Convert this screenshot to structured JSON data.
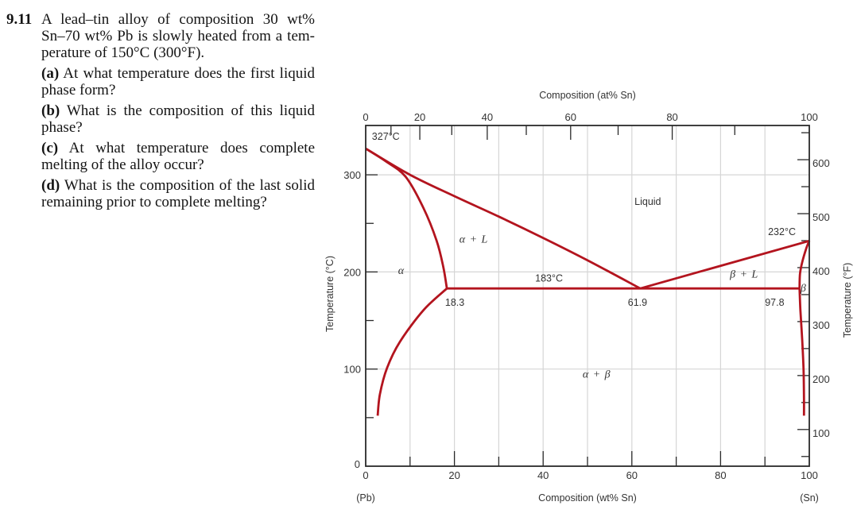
{
  "problem": {
    "number": "9.11",
    "intro_lines": [
      "A lead–tin alloy of composition 30 wt%",
      "Sn–70 wt% Pb is slowly heated from a tem-",
      "perature of 150°C (300°F)."
    ],
    "parts": [
      {
        "label": "(a)",
        "lines": [
          "At what temperature does the first liquid",
          "phase form?"
        ]
      },
      {
        "label": "(b)",
        "lines": [
          "What is the composition of this liquid",
          "phase?"
        ]
      },
      {
        "label": "(c)",
        "lines": [
          "At what temperature does complete",
          "melting of the alloy occur?"
        ]
      },
      {
        "label": "(d)",
        "lines": [
          "What is the composition of the last solid",
          "remaining prior to complete melting?"
        ]
      }
    ]
  },
  "colors": {
    "curve": "#b3141e",
    "grid": "#d6d6d6",
    "frame": "#2a2a2a",
    "label": "#333333"
  },
  "chart_data": {
    "type": "line",
    "title": "",
    "xlabel": "Composition (wt% Sn)",
    "x2label": "Composition (at% Sn)",
    "ylabel": "Temperature (°C)",
    "y2label": "Temperature (°F)",
    "xlim": [
      0,
      100
    ],
    "ylim": [
      0,
      350
    ],
    "x_end_labels": {
      "left": "(Pb)",
      "right": "(Sn)"
    },
    "x_ticks": [
      {
        "label": "0",
        "value": 0
      },
      {
        "label": "20",
        "value": 20
      },
      {
        "label": "40",
        "value": 40
      },
      {
        "label": "60",
        "value": 60
      },
      {
        "label": "80",
        "value": 80
      },
      {
        "label": "100",
        "value": 100
      }
    ],
    "x_minor": [
      10,
      30,
      50,
      70,
      90
    ],
    "x2_ticks": [
      {
        "label": "0",
        "wt": 0
      },
      {
        "label": "20",
        "wt": 12.2
      },
      {
        "label": "40",
        "wt": 27.4
      },
      {
        "label": "60",
        "wt": 46.2
      },
      {
        "label": "80",
        "wt": 69.1
      },
      {
        "label": "100",
        "wt": 100
      }
    ],
    "x2_minor_wt": [
      5.7,
      19.4,
      36.2,
      56.9,
      83.2
    ],
    "y_ticks": [
      {
        "label": "0",
        "value": 0
      },
      {
        "label": "100",
        "value": 100
      },
      {
        "label": "200",
        "value": 200
      },
      {
        "label": "300",
        "value": 300
      }
    ],
    "y_minor": [
      50,
      150,
      250
    ],
    "y2_ticks": [
      {
        "label": "100",
        "value_f": 100
      },
      {
        "label": "200",
        "value_f": 200
      },
      {
        "label": "300",
        "value_f": 300
      },
      {
        "label": "400",
        "value_f": 400
      },
      {
        "label": "500",
        "value_f": 500
      },
      {
        "label": "600",
        "value_f": 600
      }
    ],
    "y2_minor_f": [
      50,
      150,
      250,
      350,
      450,
      550,
      650
    ],
    "grid": {
      "x": [
        10,
        20,
        30,
        40,
        50,
        60,
        70,
        80,
        90
      ],
      "y": [
        100,
        200,
        300
      ]
    },
    "series": [
      {
        "name": "liquidus-left",
        "points": [
          [
            0,
            327
          ],
          [
            10,
            300
          ],
          [
            20,
            278
          ],
          [
            30,
            257
          ],
          [
            40,
            235
          ],
          [
            50,
            212
          ],
          [
            61.9,
            183
          ]
        ]
      },
      {
        "name": "solidus-left",
        "points": [
          [
            0,
            327
          ],
          [
            4.5,
            314
          ],
          [
            9,
            298
          ],
          [
            13,
            266
          ],
          [
            16,
            232
          ],
          [
            17.5,
            205
          ],
          [
            18.3,
            183
          ]
        ]
      },
      {
        "name": "solvus-left",
        "points": [
          [
            18.3,
            183
          ],
          [
            13.1,
            161
          ],
          [
            7.7,
            128
          ],
          [
            4.8,
            101
          ],
          [
            3.2,
            74
          ],
          [
            2.7,
            52
          ]
        ]
      },
      {
        "name": "eutectic-isotherm",
        "points": [
          [
            18.3,
            183
          ],
          [
            97.8,
            183
          ]
        ]
      },
      {
        "name": "liquidus-right",
        "points": [
          [
            61.9,
            183
          ],
          [
            100,
            232
          ]
        ]
      },
      {
        "name": "solidus-right",
        "points": [
          [
            100,
            232
          ],
          [
            99.3,
            224
          ],
          [
            98.4,
            210
          ],
          [
            97.9,
            198
          ],
          [
            97.8,
            183
          ]
        ]
      },
      {
        "name": "solvus-right",
        "points": [
          [
            97.8,
            183
          ],
          [
            98.0,
            160
          ],
          [
            98.4,
            130
          ],
          [
            98.7,
            100
          ],
          [
            98.8,
            70
          ],
          [
            98.8,
            52
          ]
        ]
      }
    ],
    "annotations": [
      {
        "text": "327°C",
        "x": 1.4,
        "y": 336,
        "symbolic": false
      },
      {
        "text": "Liquid",
        "x": 60.6,
        "y": 269,
        "symbolic": false
      },
      {
        "text": "α + L",
        "x": 21.1,
        "y": 230,
        "symbolic": true
      },
      {
        "text": "α",
        "x": 7.3,
        "y": 198,
        "symbolic": true
      },
      {
        "text": "183°C",
        "x": 38.2,
        "y": 190,
        "symbolic": false
      },
      {
        "text": "18.3",
        "x": 17.9,
        "y": 165,
        "symbolic": false
      },
      {
        "text": "61.9",
        "x": 59.1,
        "y": 165,
        "symbolic": false
      },
      {
        "text": "β + L",
        "x": 82.1,
        "y": 194,
        "symbolic": true
      },
      {
        "text": "232°C",
        "x": 90.7,
        "y": 238,
        "symbolic": false
      },
      {
        "text": "β",
        "x": 98.0,
        "y": 180,
        "symbolic": true
      },
      {
        "text": "97.8",
        "x": 90.0,
        "y": 165,
        "symbolic": false
      },
      {
        "text": "α + β",
        "x": 48.9,
        "y": 91,
        "symbolic": true
      }
    ],
    "key_points": {
      "pb_melting_point_c": 327,
      "sn_melting_point_c": 232,
      "eutectic_temperature_c": 183,
      "alpha_max_solubility_wt_sn": 18.3,
      "eutectic_composition_wt_sn": 61.9,
      "beta_max_solubility_wt_sn": 97.8
    }
  }
}
